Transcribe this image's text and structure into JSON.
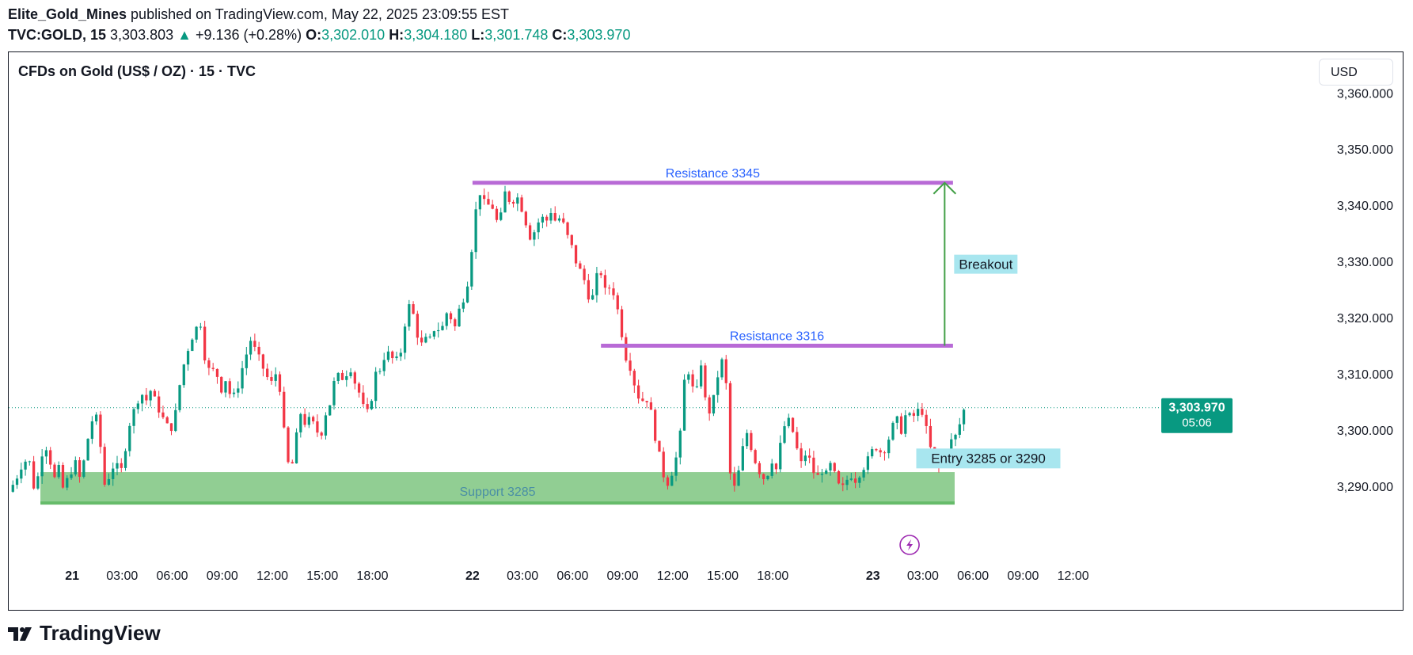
{
  "header": {
    "author": "Elite_Gold_Mines",
    "published": " published on TradingView.com, May 22, 2025 23:09:55 EST",
    "symbol": "TVC:GOLD, 15",
    "price": "3,303.803",
    "change": "+9.136 (+0.28%)",
    "o_label": "O:",
    "o_value": "3,302.010",
    "h_label": "H:",
    "h_value": "3,304.180",
    "l_label": "L:",
    "l_value": "3,301.748",
    "c_label": "C:",
    "c_value": "3,303.970"
  },
  "chart_title": "CFDs on Gold (US$ / OZ) · 15 · TVC",
  "currency_button": "USD",
  "footer": {
    "brand": "TradingView"
  },
  "colors": {
    "up": "#089981",
    "down": "#f23645",
    "resistance": "#b86ad6",
    "resistance_text": "#2962ff",
    "support_fill": "#66bb6a",
    "breakout_arrow": "#43a047",
    "label_bg": "#a8e6ef",
    "badge": "#089981",
    "flash": "#9c27b0"
  },
  "chart_data": {
    "type": "candlestick",
    "title": "CFDs on Gold (US$ / OZ) · 15 · TVC",
    "ylim": [
      3277,
      3363
    ],
    "y_ticks": [
      3290,
      3300,
      3310,
      3320,
      3330,
      3340,
      3350,
      3360
    ],
    "y_tick_labels": [
      "3,290.000",
      "3,300.000",
      "3,310.000",
      "3,320.000",
      "3,330.000",
      "3,340.000",
      "3,350.000",
      "3,360.000"
    ],
    "x_ticks": [
      {
        "label": "21",
        "bold": true,
        "hours": 0
      },
      {
        "label": "03:00",
        "hours": 3
      },
      {
        "label": "06:00",
        "hours": 6
      },
      {
        "label": "09:00",
        "hours": 9
      },
      {
        "label": "12:00",
        "hours": 12
      },
      {
        "label": "15:00",
        "hours": 15
      },
      {
        "label": "18:00",
        "hours": 18
      },
      {
        "label": "22",
        "bold": true,
        "hours": 24
      },
      {
        "label": "03:00",
        "hours": 27
      },
      {
        "label": "06:00",
        "hours": 30
      },
      {
        "label": "09:00",
        "hours": 33
      },
      {
        "label": "12:00",
        "hours": 36
      },
      {
        "label": "15:00",
        "hours": 39
      },
      {
        "label": "18:00",
        "hours": 42
      },
      {
        "label": "23",
        "bold": true,
        "hours": 48
      },
      {
        "label": "03:00",
        "hours": 51
      },
      {
        "label": "06:00",
        "hours": 54
      },
      {
        "label": "09:00",
        "hours": 57
      },
      {
        "label": "12:00",
        "hours": 60
      }
    ],
    "x_range_hours": [
      -3.8,
      65
    ],
    "last_price": "3,303.970",
    "countdown": "05:06",
    "last_value": 3303.97,
    "close_path": [
      [
        -3.8,
        3289
      ],
      [
        -3.4,
        3291
      ],
      [
        -3.0,
        3294
      ],
      [
        -2.6,
        3295
      ],
      [
        -2.3,
        3290
      ],
      [
        -2.0,
        3292
      ],
      [
        -1.7,
        3298
      ],
      [
        -1.4,
        3296
      ],
      [
        -1.1,
        3291
      ],
      [
        -0.8,
        3293
      ],
      [
        -0.5,
        3289
      ],
      [
        -0.2,
        3292
      ],
      [
        0.2,
        3294
      ],
      [
        0.5,
        3291
      ],
      [
        0.8,
        3296
      ],
      [
        1.1,
        3301
      ],
      [
        1.4,
        3303
      ],
      [
        1.7,
        3297
      ],
      [
        2.0,
        3289
      ],
      [
        2.3,
        3293
      ],
      [
        2.6,
        3294
      ],
      [
        2.9,
        3292
      ],
      [
        3.2,
        3297
      ],
      [
        3.5,
        3302
      ],
      [
        3.8,
        3304
      ],
      [
        4.1,
        3307
      ],
      [
        4.4,
        3305
      ],
      [
        4.7,
        3307
      ],
      [
        5.0,
        3305
      ],
      [
        5.3,
        3303
      ],
      [
        5.6,
        3301
      ],
      [
        5.9,
        3300
      ],
      [
        6.2,
        3303
      ],
      [
        6.5,
        3309
      ],
      [
        6.8,
        3313
      ],
      [
        7.1,
        3316
      ],
      [
        7.4,
        3318
      ],
      [
        7.7,
        3319
      ],
      [
        8.0,
        3312
      ],
      [
        8.3,
        3310
      ],
      [
        8.6,
        3311
      ],
      [
        8.9,
        3307
      ],
      [
        9.2,
        3309
      ],
      [
        9.5,
        3306
      ],
      [
        9.8,
        3306
      ],
      [
        10.1,
        3310
      ],
      [
        10.4,
        3313
      ],
      [
        10.7,
        3316
      ],
      [
        11.0,
        3314
      ],
      [
        11.3,
        3312
      ],
      [
        11.6,
        3310
      ],
      [
        11.9,
        3308
      ],
      [
        12.2,
        3310
      ],
      [
        12.5,
        3307
      ],
      [
        12.8,
        3296
      ],
      [
        13.1,
        3292
      ],
      [
        13.4,
        3298
      ],
      [
        13.7,
        3303
      ],
      [
        14.0,
        3301
      ],
      [
        14.3,
        3302
      ],
      [
        14.6,
        3300
      ],
      [
        14.9,
        3299
      ],
      [
        15.2,
        3303
      ],
      [
        15.5,
        3305
      ],
      [
        15.8,
        3310
      ],
      [
        16.1,
        3309
      ],
      [
        16.4,
        3310
      ],
      [
        16.7,
        3311
      ],
      [
        17.0,
        3308
      ],
      [
        17.3,
        3306
      ],
      [
        17.6,
        3302
      ],
      [
        17.9,
        3305
      ],
      [
        18.2,
        3310
      ],
      [
        18.5,
        3311
      ],
      [
        18.8,
        3314
      ],
      [
        19.1,
        3313
      ],
      [
        19.4,
        3312
      ],
      [
        19.7,
        3314
      ],
      [
        20.0,
        3320
      ],
      [
        20.3,
        3323
      ],
      [
        20.6,
        3318
      ],
      [
        20.9,
        3315
      ],
      [
        21.2,
        3316
      ],
      [
        21.5,
        3316
      ],
      [
        21.8,
        3319
      ],
      [
        22.1,
        3317
      ],
      [
        22.4,
        3321
      ],
      [
        22.7,
        3320
      ],
      [
        23.0,
        3318
      ],
      [
        23.3,
        3323
      ],
      [
        23.6,
        3324
      ],
      [
        23.9,
        3331
      ],
      [
        24.2,
        3339
      ],
      [
        24.5,
        3343
      ],
      [
        24.8,
        3339
      ],
      [
        25.1,
        3341
      ],
      [
        25.4,
        3337
      ],
      [
        25.7,
        3338
      ],
      [
        26.0,
        3343
      ],
      [
        26.3,
        3340
      ],
      [
        26.6,
        3342
      ],
      [
        26.9,
        3340
      ],
      [
        27.2,
        3337
      ],
      [
        27.5,
        3334
      ],
      [
        27.8,
        3336
      ],
      [
        28.1,
        3338
      ],
      [
        28.4,
        3337
      ],
      [
        28.7,
        3339
      ],
      [
        29.0,
        3337
      ],
      [
        29.3,
        3338
      ],
      [
        29.6,
        3335
      ],
      [
        29.9,
        3333
      ],
      [
        30.2,
        3330
      ],
      [
        30.5,
        3328
      ],
      [
        30.8,
        3326
      ],
      [
        31.1,
        3322
      ],
      [
        31.4,
        3327
      ],
      [
        31.7,
        3328
      ],
      [
        32.0,
        3324
      ],
      [
        32.3,
        3326
      ],
      [
        32.6,
        3323
      ],
      [
        32.9,
        3318
      ],
      [
        33.2,
        3313
      ],
      [
        33.5,
        3311
      ],
      [
        33.8,
        3307
      ],
      [
        34.1,
        3305
      ],
      [
        34.4,
        3306
      ],
      [
        34.7,
        3303
      ],
      [
        35.0,
        3298
      ],
      [
        35.3,
        3294
      ],
      [
        35.6,
        3290
      ],
      [
        35.9,
        3292
      ],
      [
        36.2,
        3295
      ],
      [
        36.5,
        3300
      ],
      [
        36.8,
        3313
      ],
      [
        37.1,
        3308
      ],
      [
        37.4,
        3306
      ],
      [
        37.7,
        3312
      ],
      [
        38.0,
        3304
      ],
      [
        38.3,
        3303
      ],
      [
        38.6,
        3308
      ],
      [
        38.9,
        3313
      ],
      [
        39.2,
        3308
      ],
      [
        39.5,
        3289
      ],
      [
        39.8,
        3290
      ],
      [
        40.1,
        3295
      ],
      [
        40.4,
        3300
      ],
      [
        40.7,
        3297
      ],
      [
        41.0,
        3294
      ],
      [
        41.3,
        3292
      ],
      [
        41.6,
        3291
      ],
      [
        41.9,
        3295
      ],
      [
        42.2,
        3293
      ],
      [
        42.5,
        3298
      ],
      [
        42.8,
        3302
      ],
      [
        43.1,
        3301
      ],
      [
        43.4,
        3297
      ],
      [
        43.7,
        3294
      ],
      [
        44.0,
        3296
      ],
      [
        44.3,
        3294
      ],
      [
        44.6,
        3291
      ],
      [
        44.9,
        3293
      ],
      [
        45.2,
        3292
      ],
      [
        45.5,
        3294
      ],
      [
        45.8,
        3291
      ],
      [
        46.1,
        3289
      ],
      [
        46.4,
        3291
      ],
      [
        46.7,
        3292
      ],
      [
        47.0,
        3291
      ],
      [
        47.3,
        3293
      ],
      [
        47.6,
        3294
      ],
      [
        47.9,
        3296
      ],
      [
        48.2,
        3297
      ],
      [
        48.5,
        3296
      ],
      [
        48.8,
        3297
      ],
      [
        49.1,
        3300
      ],
      [
        49.4,
        3302
      ],
      [
        49.7,
        3300
      ],
      [
        50.0,
        3303
      ],
      [
        50.3,
        3302
      ],
      [
        50.6,
        3303
      ],
      [
        50.9,
        3304
      ],
      [
        51.2,
        3300
      ],
      [
        51.5,
        3296
      ],
      [
        51.8,
        3294
      ],
      [
        52.1,
        3293
      ],
      [
        52.4,
        3296
      ],
      [
        52.7,
        3298
      ],
      [
        53.0,
        3299
      ],
      [
        53.3,
        3302
      ],
      [
        53.5,
        3304
      ]
    ],
    "annotations": [
      {
        "type": "hline",
        "label": "Resistance 3345",
        "y": 3344,
        "x_start": 24.0,
        "x_end": 52.8
      },
      {
        "type": "hline",
        "label": "Resistance 3316",
        "y": 3315,
        "x_start": 31.7,
        "x_end": 52.8
      },
      {
        "type": "box",
        "label": "Support 3285",
        "y_low": 3287,
        "y_high": 3292.5,
        "x_start": -1.9,
        "x_end": 52.9
      },
      {
        "type": "arrow",
        "label": "Breakout",
        "x": 52.3,
        "y_from": 3315,
        "y_to": 3344
      },
      {
        "type": "callout",
        "label": "Entry 3285 or 3290",
        "x": 50.6,
        "y": 3295
      }
    ]
  }
}
